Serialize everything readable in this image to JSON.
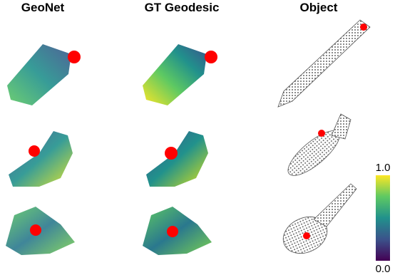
{
  "columns": [
    "GeoNet",
    "GT Geodesic",
    "Object"
  ],
  "colorbar": {
    "max_label": "1.0",
    "min_label": "0.0"
  }
}
